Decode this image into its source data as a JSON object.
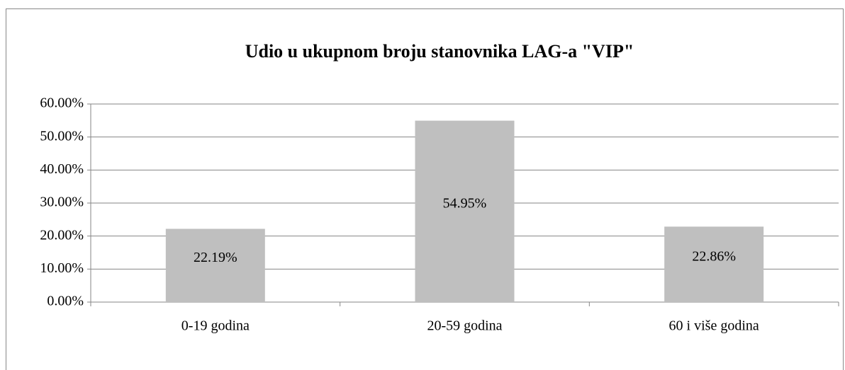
{
  "chart_data": {
    "type": "bar",
    "title": "Udio u ukupnom broju stanovnika LAG-a \"VIP\"",
    "categories": [
      "0-19 godina",
      "20-59 godina",
      "60 i više godina"
    ],
    "values": [
      22.19,
      54.95,
      22.86
    ],
    "value_labels": [
      "22.19%",
      "54.95%",
      "22.86%"
    ],
    "color": "#bfbfbf",
    "ylim": [
      0,
      60
    ],
    "yticks": [
      {
        "value": 0,
        "label": "0.00%"
      },
      {
        "value": 10,
        "label": "10.00%"
      },
      {
        "value": 20,
        "label": "20.00%"
      },
      {
        "value": 30,
        "label": "30.00%"
      },
      {
        "value": 40,
        "label": "40.00%"
      },
      {
        "value": 50,
        "label": "50.00%"
      },
      {
        "value": 60,
        "label": "60.00%"
      }
    ],
    "grid": true
  }
}
